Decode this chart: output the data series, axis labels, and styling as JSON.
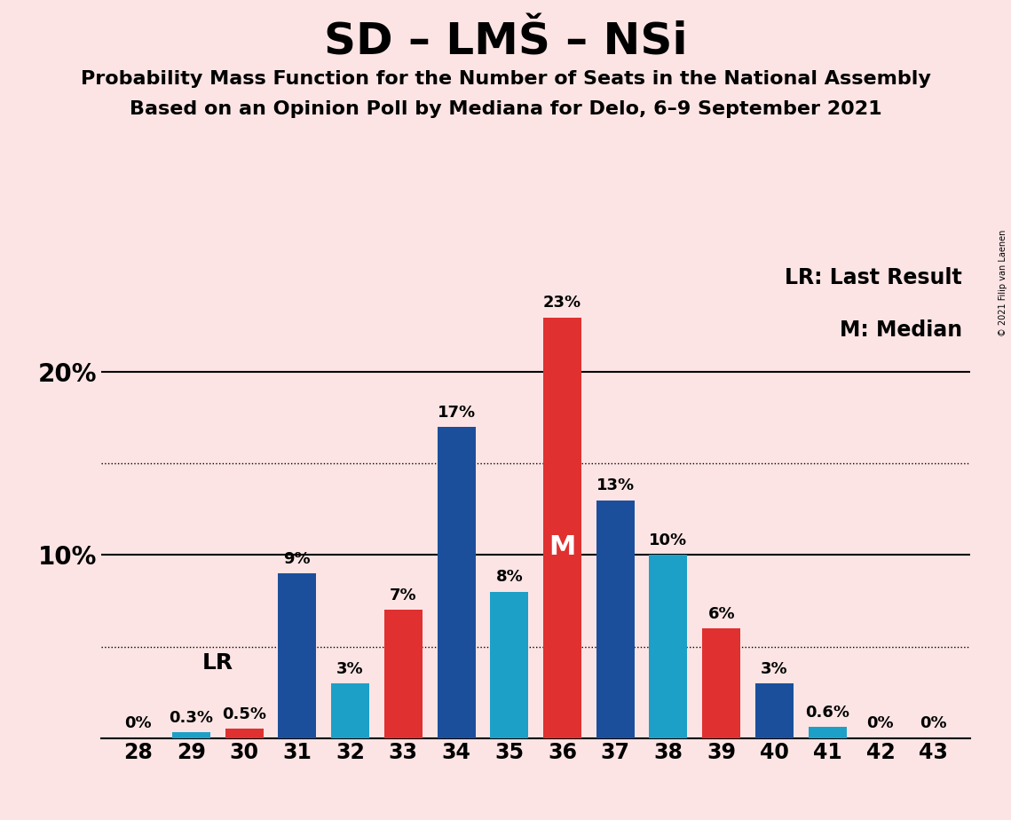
{
  "title": "SD – LMŠ – NSi",
  "subtitle1": "Probability Mass Function for the Number of Seats in the National Assembly",
  "subtitle2": "Based on an Opinion Poll by Mediana for Delo, 6–9 September 2021",
  "copyright": "© 2021 Filip van Laenen",
  "legend_lr": "LR: Last Result",
  "legend_m": "M: Median",
  "background_color": "#fce4e4",
  "seats": [
    28,
    29,
    30,
    31,
    32,
    33,
    34,
    35,
    36,
    37,
    38,
    39,
    40,
    41,
    42,
    43
  ],
  "values": [
    0.0,
    0.3,
    0.5,
    9.0,
    3.0,
    7.0,
    17.0,
    8.0,
    23.0,
    13.0,
    10.0,
    6.0,
    3.0,
    0.6,
    0.0,
    0.0
  ],
  "labels": [
    "0%",
    "0.3%",
    "0.5%",
    "9%",
    "3%",
    "7%",
    "17%",
    "8%",
    "23%",
    "13%",
    "10%",
    "6%",
    "3%",
    "0.6%",
    "0%",
    "0%"
  ],
  "colors": [
    "#1b4f9c",
    "#1da0c8",
    "#e03030",
    "#1b4f9c",
    "#1da0c8",
    "#e03030",
    "#1b4f9c",
    "#1da0c8",
    "#e03030",
    "#1b4f9c",
    "#1da0c8",
    "#e03030",
    "#1b4f9c",
    "#1da0c8",
    "#1b4f9c",
    "#1da0c8"
  ],
  "lr_seat": 30,
  "median_seat": 36,
  "ylim": [
    0,
    26
  ],
  "solid_yticks": [
    10,
    20
  ],
  "dotted_yticks": [
    5,
    15
  ],
  "bar_width": 0.72,
  "title_fontsize": 36,
  "subtitle_fontsize": 16,
  "label_fontsize": 13,
  "tick_fontsize": 17,
  "ytick_fontsize": 20,
  "legend_fontsize": 17,
  "lr_fontsize": 18,
  "m_fontsize": 22
}
